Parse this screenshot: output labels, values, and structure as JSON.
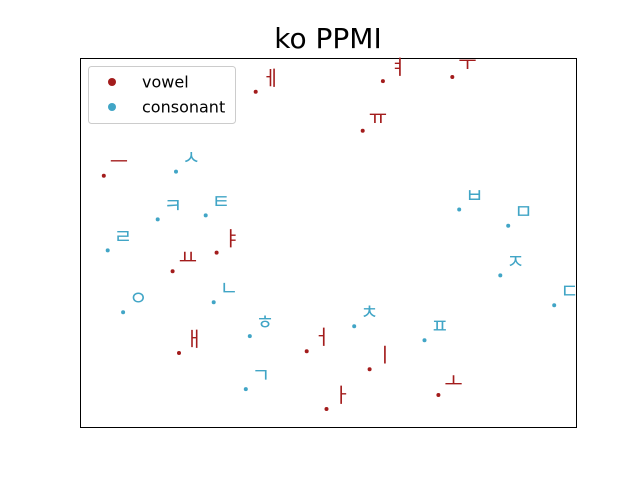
{
  "chart_data": {
    "type": "scatter",
    "title": "ko PPMI",
    "xlabel": "",
    "ylabel": "",
    "xlim": [
      0,
      100
    ],
    "ylim": [
      0,
      100
    ],
    "grid": false,
    "show_ticks": false,
    "legend_placement": "top-left",
    "series": [
      {
        "name": "vowel",
        "color": "#a31c1c",
        "points": [
          {
            "label": "ㅔ",
            "x": 35.3,
            "y": 91.1
          },
          {
            "label": "ㅕ",
            "x": 61.0,
            "y": 94.0
          },
          {
            "label": "ㅜ",
            "x": 75.0,
            "y": 95.1
          },
          {
            "label": "ㅠ",
            "x": 56.9,
            "y": 80.5
          },
          {
            "label": "ㅡ",
            "x": 4.6,
            "y": 68.3
          },
          {
            "label": "ㅑ",
            "x": 27.4,
            "y": 47.4
          },
          {
            "label": "ㅛ",
            "x": 18.5,
            "y": 42.3
          },
          {
            "label": "ㅐ",
            "x": 19.8,
            "y": 20.1
          },
          {
            "label": "ㅓ",
            "x": 45.6,
            "y": 20.6
          },
          {
            "label": "ㅣ",
            "x": 58.3,
            "y": 15.7
          },
          {
            "label": "ㅏ",
            "x": 49.6,
            "y": 4.9
          },
          {
            "label": "ㅗ",
            "x": 72.2,
            "y": 8.7
          }
        ]
      },
      {
        "name": "consonant",
        "color": "#41a5c6",
        "points": [
          {
            "label": "ㅅ",
            "x": 19.2,
            "y": 69.4
          },
          {
            "label": "ㅋ",
            "x": 15.5,
            "y": 56.4
          },
          {
            "label": "ㅌ",
            "x": 25.2,
            "y": 57.5
          },
          {
            "label": "ㄹ",
            "x": 5.4,
            "y": 48.0
          },
          {
            "label": "ㅇ",
            "x": 8.5,
            "y": 31.2
          },
          {
            "label": "ㄴ",
            "x": 26.8,
            "y": 33.9
          },
          {
            "label": "ㅎ",
            "x": 34.1,
            "y": 24.7
          },
          {
            "label": "ㄱ",
            "x": 33.3,
            "y": 10.3
          },
          {
            "label": "ㅊ",
            "x": 55.2,
            "y": 27.4
          },
          {
            "label": "ㅍ",
            "x": 69.4,
            "y": 23.6
          },
          {
            "label": "ㅂ",
            "x": 76.4,
            "y": 59.1
          },
          {
            "label": "ㅁ",
            "x": 86.3,
            "y": 54.7
          },
          {
            "label": "ㅈ",
            "x": 84.7,
            "y": 41.2
          },
          {
            "label": "ㄷ",
            "x": 95.6,
            "y": 33.1
          }
        ]
      }
    ]
  }
}
